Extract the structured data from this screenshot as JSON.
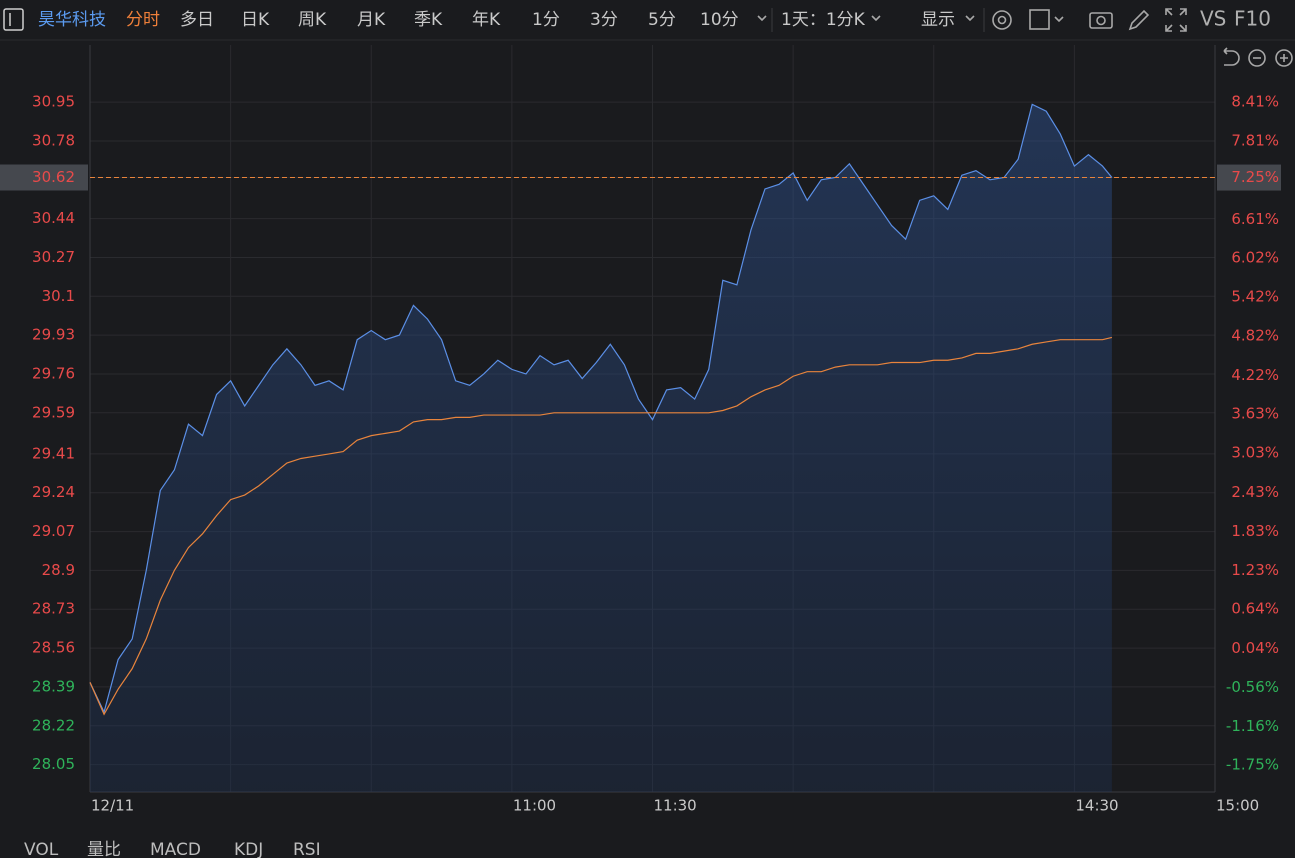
{
  "toolbar": {
    "stock": "昊华科技",
    "tabs": [
      "分时",
      "多日",
      "日K",
      "周K",
      "月K",
      "季K",
      "年K",
      "1分",
      "3分",
      "5分",
      "10分"
    ],
    "range": "1天：1分K",
    "display": "显示",
    "vs": "VS",
    "f10": "F10"
  },
  "indicators": [
    "VOL",
    "量比",
    "MACD",
    "KDJ",
    "RSI"
  ],
  "chart_data": {
    "type": "line",
    "x": [
      0,
      3,
      6,
      9,
      12,
      15,
      18,
      21,
      24,
      27,
      30,
      33,
      36,
      39,
      42,
      45,
      48,
      51,
      54,
      57,
      60,
      63,
      66,
      69,
      72,
      75,
      78,
      81,
      84,
      87,
      90,
      93,
      96,
      99,
      102,
      105,
      108,
      111,
      114,
      117,
      120,
      123,
      126,
      129,
      132,
      135,
      138,
      141,
      144,
      147,
      150,
      153,
      156,
      159,
      162,
      165,
      168,
      171,
      174,
      177,
      180,
      183,
      186,
      189,
      192,
      195,
      198,
      201,
      204,
      207,
      210,
      213,
      216,
      218
    ],
    "series": [
      {
        "color": "#5b8fe6",
        "area": true,
        "values": [
          28.41,
          28.28,
          28.51,
          28.6,
          28.9,
          29.25,
          29.34,
          29.54,
          29.49,
          29.67,
          29.73,
          29.62,
          29.71,
          29.8,
          29.87,
          29.8,
          29.71,
          29.73,
          29.69,
          29.91,
          29.95,
          29.91,
          29.93,
          30.06,
          30.0,
          29.91,
          29.73,
          29.71,
          29.76,
          29.82,
          29.78,
          29.76,
          29.84,
          29.8,
          29.82,
          29.74,
          29.81,
          29.89,
          29.8,
          29.65,
          29.56,
          29.69,
          29.7,
          29.65,
          29.78,
          30.17,
          30.15,
          30.39,
          30.57,
          30.59,
          30.64,
          30.52,
          30.61,
          30.62,
          30.68,
          30.59,
          30.5,
          30.41,
          30.35,
          30.52,
          30.54,
          30.48,
          30.63,
          30.65,
          30.61,
          30.62,
          30.7,
          30.94,
          30.91,
          30.81,
          30.67,
          30.72,
          30.67,
          30.62
        ]
      },
      {
        "color": "#e8843c",
        "area": false,
        "values": [
          28.41,
          28.27,
          28.38,
          28.47,
          28.6,
          28.77,
          28.9,
          29.0,
          29.06,
          29.14,
          29.21,
          29.23,
          29.27,
          29.32,
          29.37,
          29.39,
          29.4,
          29.41,
          29.42,
          29.47,
          29.49,
          29.5,
          29.51,
          29.55,
          29.56,
          29.56,
          29.57,
          29.57,
          29.58,
          29.58,
          29.58,
          29.58,
          29.58,
          29.59,
          29.59,
          29.59,
          29.59,
          29.59,
          29.59,
          29.59,
          29.59,
          29.59,
          29.59,
          29.59,
          29.59,
          29.6,
          29.62,
          29.66,
          29.69,
          29.71,
          29.75,
          29.77,
          29.77,
          29.79,
          29.8,
          29.8,
          29.8,
          29.81,
          29.81,
          29.81,
          29.82,
          29.82,
          29.83,
          29.85,
          29.85,
          29.86,
          29.87,
          29.89,
          29.9,
          29.91,
          29.91,
          29.91,
          29.91,
          29.92
        ]
      }
    ],
    "xlim": [
      0,
      240
    ],
    "xticks": [
      {
        "value": 0,
        "label": "12/11"
      },
      {
        "value": 90,
        "label": "11:00"
      },
      {
        "value": 120,
        "label": "11:30"
      },
      {
        "value": 210,
        "label": "14:30"
      },
      {
        "value": 240,
        "label": "15:00"
      }
    ],
    "xgrid": [
      30,
      60,
      90,
      120,
      150,
      180,
      210
    ],
    "ylim": [
      27.93,
      31.2
    ],
    "yticks": [
      30.95,
      30.78,
      30.62,
      30.44,
      30.27,
      30.1,
      29.93,
      29.76,
      29.59,
      29.41,
      29.24,
      29.07,
      28.9,
      28.73,
      28.56,
      28.39,
      28.22,
      28.05
    ],
    "y2lim": [
      -2.16,
      9.28
    ],
    "y2ticks": [
      {
        "value": 8.41,
        "label": "8.41%"
      },
      {
        "value": 7.81,
        "label": "7.81%"
      },
      {
        "value": 7.25,
        "label": "7.25%"
      },
      {
        "value": 6.61,
        "label": "6.61%"
      },
      {
        "value": 6.02,
        "label": "6.02%"
      },
      {
        "value": 5.42,
        "label": "5.42%"
      },
      {
        "value": 4.82,
        "label": "4.82%"
      },
      {
        "value": 4.22,
        "label": "4.22%"
      },
      {
        "value": 3.63,
        "label": "3.63%"
      },
      {
        "value": 3.03,
        "label": "3.03%"
      },
      {
        "value": 2.43,
        "label": "2.43%"
      },
      {
        "value": 1.83,
        "label": "1.83%"
      },
      {
        "value": 1.23,
        "label": "1.23%"
      },
      {
        "value": 0.64,
        "label": "0.64%"
      },
      {
        "value": 0.04,
        "label": "0.04%"
      },
      {
        "value": -0.56,
        "label": "-0.56%"
      },
      {
        "value": -1.16,
        "label": "-1.16%"
      },
      {
        "value": -1.75,
        "label": "-1.75%"
      }
    ],
    "grid": true
  }
}
